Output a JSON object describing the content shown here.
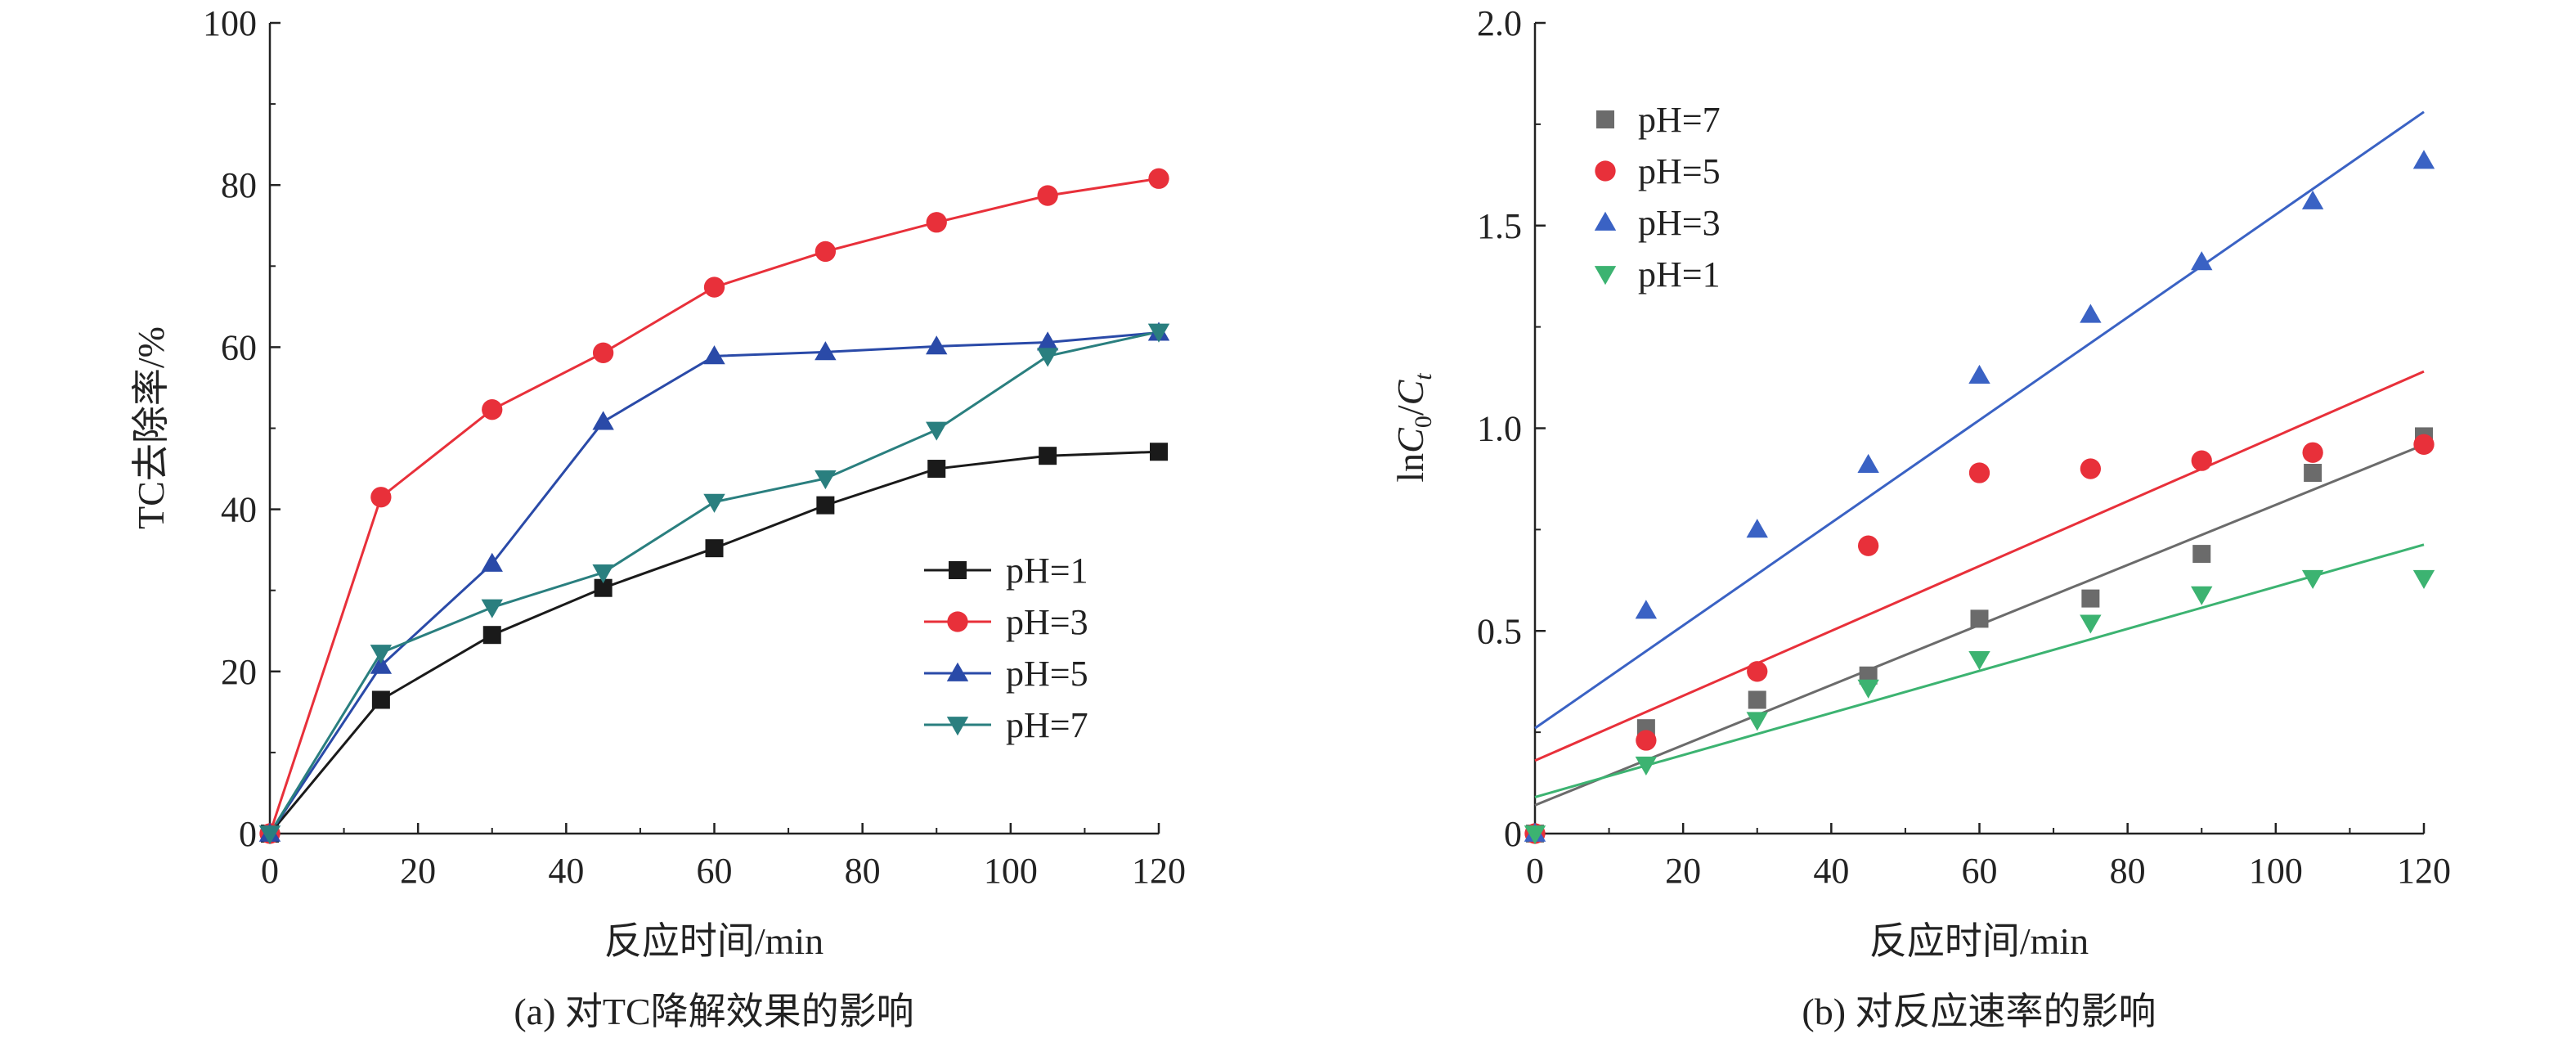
{
  "chart_data": [
    {
      "type": "line",
      "caption": "(a) 对TC降解效果的影响",
      "xlabel": "反应时间/min",
      "ylabel": "TC去除率/%",
      "xlim": [
        0,
        120
      ],
      "ylim": [
        0,
        100
      ],
      "xticks": [
        "0",
        "20",
        "40",
        "60",
        "80",
        "100",
        "120"
      ],
      "yticks": [
        "0",
        "20",
        "40",
        "60",
        "80",
        "100"
      ],
      "legend_position": "lower-right",
      "x": [
        0,
        15,
        30,
        45,
        60,
        75,
        90,
        105,
        120
      ],
      "series": [
        {
          "name": "pH=1",
          "color": "#1a1a1a",
          "marker": "square",
          "values": [
            0,
            16.5,
            24.5,
            30.3,
            35.2,
            40.5,
            45.0,
            46.6,
            47.1
          ]
        },
        {
          "name": "pH=3",
          "color": "#e8303a",
          "marker": "circle",
          "values": [
            0,
            41.5,
            52.3,
            59.3,
            67.4,
            71.8,
            75.4,
            78.7,
            80.8
          ]
        },
        {
          "name": "pH=5",
          "color": "#2a4aa8",
          "marker": "triangle-up",
          "values": [
            0,
            20.7,
            33.3,
            50.8,
            58.9,
            59.4,
            60.1,
            60.6,
            61.8
          ]
        },
        {
          "name": "pH=7",
          "color": "#2a7f7f",
          "marker": "triangle-down",
          "values": [
            0,
            22.3,
            27.9,
            32.2,
            40.9,
            43.8,
            49.8,
            58.9,
            61.9
          ]
        }
      ]
    },
    {
      "type": "scatter",
      "caption": "(b) 对反应速率的影响",
      "xlabel": "反应时间/min",
      "ylabel_prefix": "ln",
      "ylabel_c0": "C",
      "ylabel_sub0": "0",
      "ylabel_sep": "/",
      "ylabel_ct": "C",
      "ylabel_subt": "t",
      "xlim": [
        0,
        120
      ],
      "ylim": [
        0,
        2.0
      ],
      "xticks": [
        "0",
        "20",
        "40",
        "60",
        "80",
        "100",
        "120"
      ],
      "yticks": [
        "0",
        "0.5",
        "1.0",
        "1.5",
        "2.0"
      ],
      "legend_position": "top-left",
      "x": [
        0,
        15,
        30,
        45,
        60,
        75,
        90,
        105,
        120
      ],
      "series": [
        {
          "name": "pH=7",
          "color": "#6b6b6b",
          "marker": "square",
          "values": [
            0,
            0.26,
            0.33,
            0.39,
            0.53,
            0.58,
            0.69,
            0.89,
            0.98
          ],
          "fit": {
            "intercept": 0.07,
            "slope": 0.00741
          }
        },
        {
          "name": "pH=5",
          "color": "#e8303a",
          "marker": "circle",
          "values": [
            0,
            0.23,
            0.4,
            0.71,
            0.89,
            0.9,
            0.92,
            0.94,
            0.96
          ],
          "fit": {
            "intercept": 0.18,
            "slope": 0.008
          }
        },
        {
          "name": "pH=3",
          "color": "#3a62c4",
          "marker": "triangle-up",
          "values": [
            0,
            0.55,
            0.75,
            0.91,
            1.13,
            1.28,
            1.41,
            1.56,
            1.66
          ],
          "fit": {
            "intercept": 0.26,
            "slope": 0.01267
          }
        },
        {
          "name": "pH=1",
          "color": "#3cb371",
          "marker": "triangle-down",
          "values": [
            0,
            0.17,
            0.28,
            0.36,
            0.43,
            0.52,
            0.59,
            0.63,
            0.63
          ],
          "fit": {
            "intercept": 0.09,
            "slope": 0.00519
          }
        }
      ]
    }
  ]
}
